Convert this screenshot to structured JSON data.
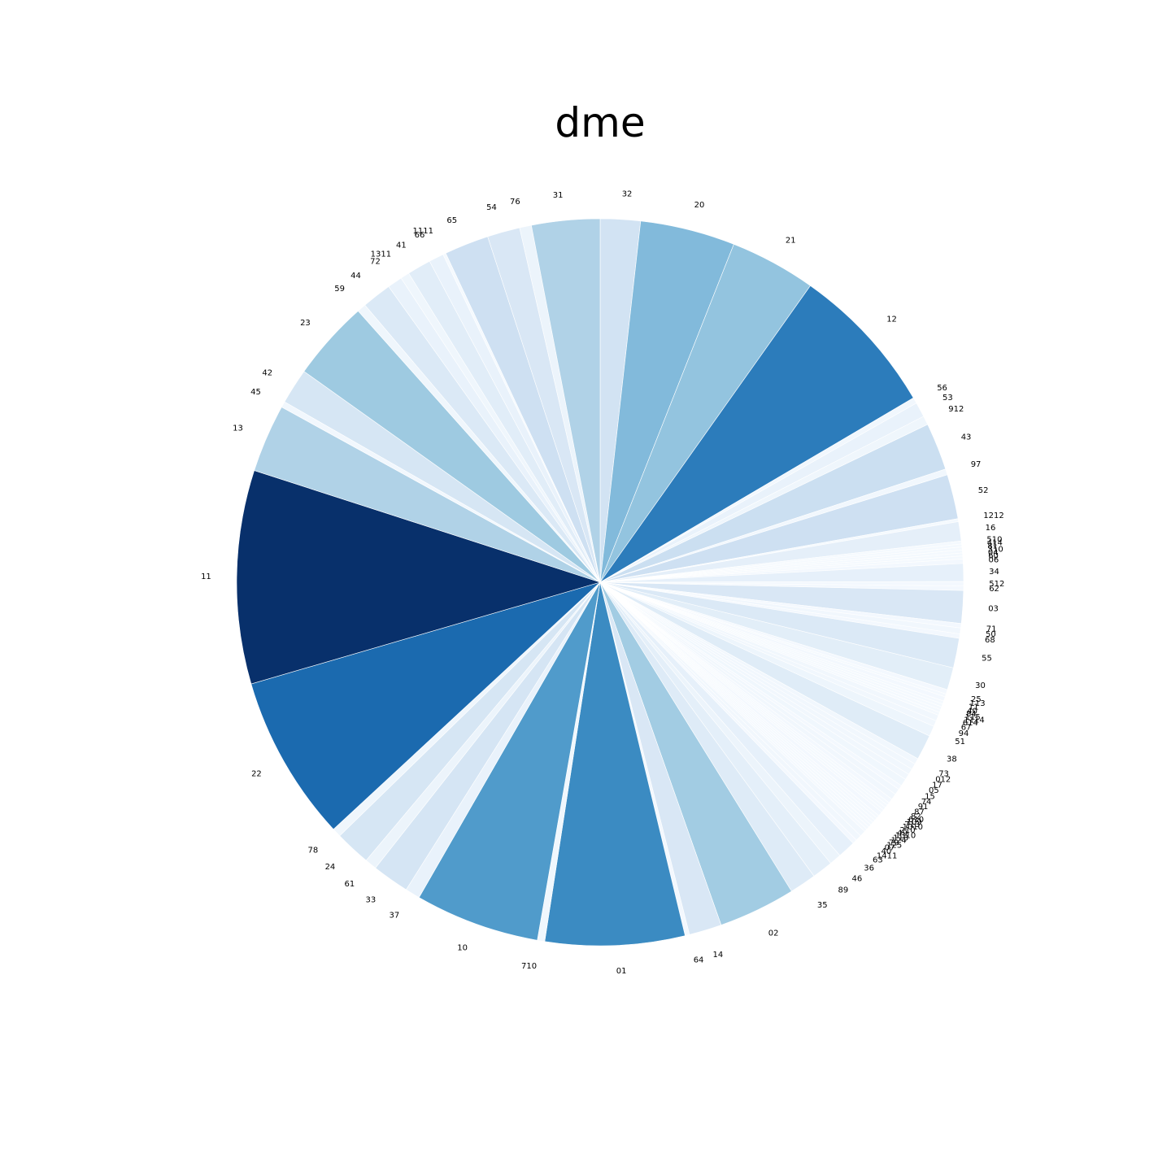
{
  "chart_data": {
    "type": "pie",
    "title": "dme",
    "start_angle_deg": 90,
    "direction": "clockwise",
    "colormap": "Blues",
    "color_range": [
      "#f7fbff",
      "#08306b"
    ],
    "slices": [
      {
        "label": "32",
        "value": 1.35
      },
      {
        "label": "20",
        "value": 3.2
      },
      {
        "label": "21",
        "value": 2.9
      },
      {
        "label": "12",
        "value": 5.1
      },
      {
        "label": "56",
        "value": 0.2
      },
      {
        "label": "53",
        "value": 0.5
      },
      {
        "label": "912",
        "value": 0.3
      },
      {
        "label": "43",
        "value": 1.6
      },
      {
        "label": "97",
        "value": 0.2
      },
      {
        "label": "52",
        "value": 1.5
      },
      {
        "label": "1212",
        "value": 0.1
      },
      {
        "label": "16",
        "value": 0.65
      },
      {
        "label": "510",
        "value": 0.1
      },
      {
        "label": "414",
        "value": 0.1
      },
      {
        "label": "81",
        "value": 0.1
      },
      {
        "label": "310",
        "value": 0.1
      },
      {
        "label": "04",
        "value": 0.1
      },
      {
        "label": "60",
        "value": 0.1
      },
      {
        "label": "06",
        "value": 0.15
      },
      {
        "label": "34",
        "value": 0.6
      },
      {
        "label": "512",
        "value": 0.15
      },
      {
        "label": "62",
        "value": 0.15
      },
      {
        "label": "03",
        "value": 1.1
      },
      {
        "label": "71",
        "value": 0.15
      },
      {
        "label": "50",
        "value": 0.2
      },
      {
        "label": "68",
        "value": 0.15
      },
      {
        "label": "55",
        "value": 1.0
      },
      {
        "label": "30",
        "value": 0.75
      },
      {
        "label": "25",
        "value": 0.15
      },
      {
        "label": "113",
        "value": 0.1
      },
      {
        "label": "11",
        "value": 0.15
      },
      {
        "label": "40",
        "value": 0.1
      },
      {
        "label": "84",
        "value": 0.1
      },
      {
        "label": "115",
        "value": 0.1
      },
      {
        "label": "1114",
        "value": 0.1
      },
      {
        "label": "614",
        "value": 0.1
      },
      {
        "label": "67",
        "value": 0.2
      },
      {
        "label": "94",
        "value": 0.2
      },
      {
        "label": "51",
        "value": 0.35
      },
      {
        "label": "38",
        "value": 0.85
      },
      {
        "label": "73",
        "value": 0.2
      },
      {
        "label": "012",
        "value": 0.2
      },
      {
        "label": "17",
        "value": 0.2
      },
      {
        "label": "05",
        "value": 0.2
      },
      {
        "label": "15",
        "value": 0.25
      },
      {
        "label": "74",
        "value": 0.15
      },
      {
        "label": "91",
        "value": 0.2
      },
      {
        "label": "87",
        "value": 0.2
      },
      {
        "label": "82",
        "value": 0.15
      },
      {
        "label": "610",
        "value": 0.1
      },
      {
        "label": "109",
        "value": 0.1
      },
      {
        "label": "713",
        "value": 0.1
      },
      {
        "label": "1010",
        "value": 0.1
      },
      {
        "label": "210",
        "value": 0.15
      },
      {
        "label": "49",
        "value": 0.1
      },
      {
        "label": "1310",
        "value": 0.1
      },
      {
        "label": "113",
        "value": 0.1
      },
      {
        "label": "124",
        "value": 0.1
      },
      {
        "label": "79",
        "value": 0.1
      },
      {
        "label": "125",
        "value": 0.1
      },
      {
        "label": "07",
        "value": 0.1
      },
      {
        "label": "40",
        "value": 0.2
      },
      {
        "label": "1411",
        "value": 0.2
      },
      {
        "label": "63",
        "value": 0.15
      },
      {
        "label": "36",
        "value": 0.6
      },
      {
        "label": "46",
        "value": 0.4
      },
      {
        "label": "89",
        "value": 0.7
      },
      {
        "label": "35",
        "value": 0.9
      },
      {
        "label": "02",
        "value": 2.6
      },
      {
        "label": "14",
        "value": 1.1
      },
      {
        "label": "64",
        "value": 0.15
      },
      {
        "label": "01",
        "value": 4.7
      },
      {
        "label": "710",
        "value": 0.25
      },
      {
        "label": "10",
        "value": 4.2
      },
      {
        "label": "37",
        "value": 0.5
      },
      {
        "label": "33",
        "value": 1.25
      },
      {
        "label": "61",
        "value": 0.4
      },
      {
        "label": "24",
        "value": 1.2
      },
      {
        "label": "78",
        "value": 0.3
      },
      {
        "label": "22",
        "value": 5.6
      },
      {
        "label": "11",
        "value": 7.2
      },
      {
        "label": "13",
        "value": 2.3
      },
      {
        "label": "45",
        "value": 0.2
      },
      {
        "label": "42",
        "value": 1.2
      },
      {
        "label": "23",
        "value": 2.7
      },
      {
        "label": "59",
        "value": 0.3
      },
      {
        "label": "44",
        "value": 1.0
      },
      {
        "label": "72",
        "value": 0.5
      },
      {
        "label": "1311",
        "value": 0.3
      },
      {
        "label": "41",
        "value": 0.8
      },
      {
        "label": "66",
        "value": 0.5
      },
      {
        "label": "1111",
        "value": 0.1
      },
      {
        "label": "65",
        "value": 1.5
      },
      {
        "label": "54",
        "value": 1.1
      },
      {
        "label": "76",
        "value": 0.4
      },
      {
        "label": "31",
        "value": 2.3
      }
    ]
  }
}
